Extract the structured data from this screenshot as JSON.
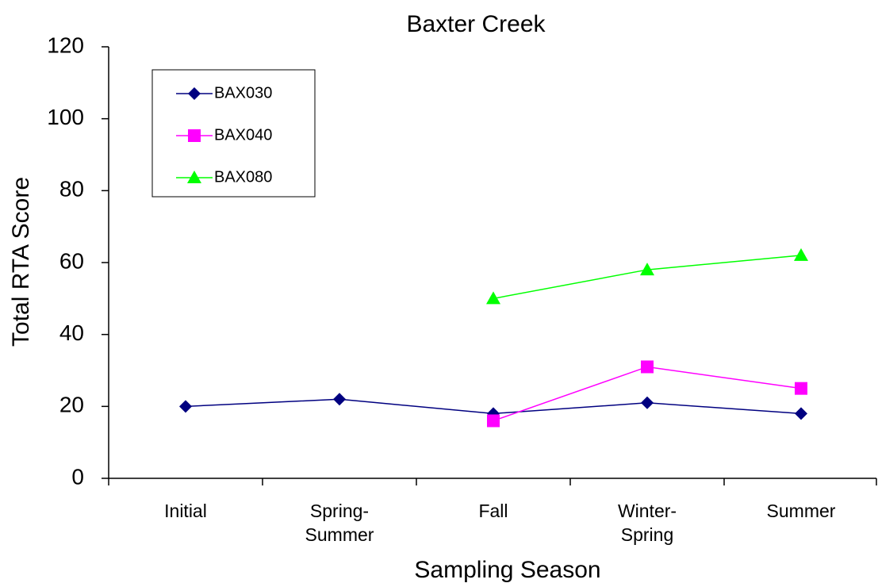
{
  "chart_data": {
    "type": "line",
    "title": "Baxter Creek",
    "x_label": "Sampling Season",
    "y_label": "Total RTA Score",
    "categories": [
      "Initial",
      "Spring-Summer",
      "Fall",
      "Winter-Spring",
      "Summer"
    ],
    "series": [
      {
        "name": "BAX030",
        "color": "#000080",
        "marker": "diamond",
        "values": [
          20,
          22,
          18,
          21,
          18
        ]
      },
      {
        "name": "BAX040",
        "color": "#ff00ff",
        "marker": "square",
        "values": [
          null,
          null,
          16,
          31,
          25
        ]
      },
      {
        "name": "BAX080",
        "color": "#00ff00",
        "marker": "triangle",
        "values": [
          null,
          null,
          50,
          58,
          62
        ]
      }
    ],
    "ylim": [
      0,
      120
    ],
    "yticks": [
      0,
      20,
      40,
      60,
      80,
      100,
      120
    ],
    "grid": false,
    "legend": "upper left"
  }
}
